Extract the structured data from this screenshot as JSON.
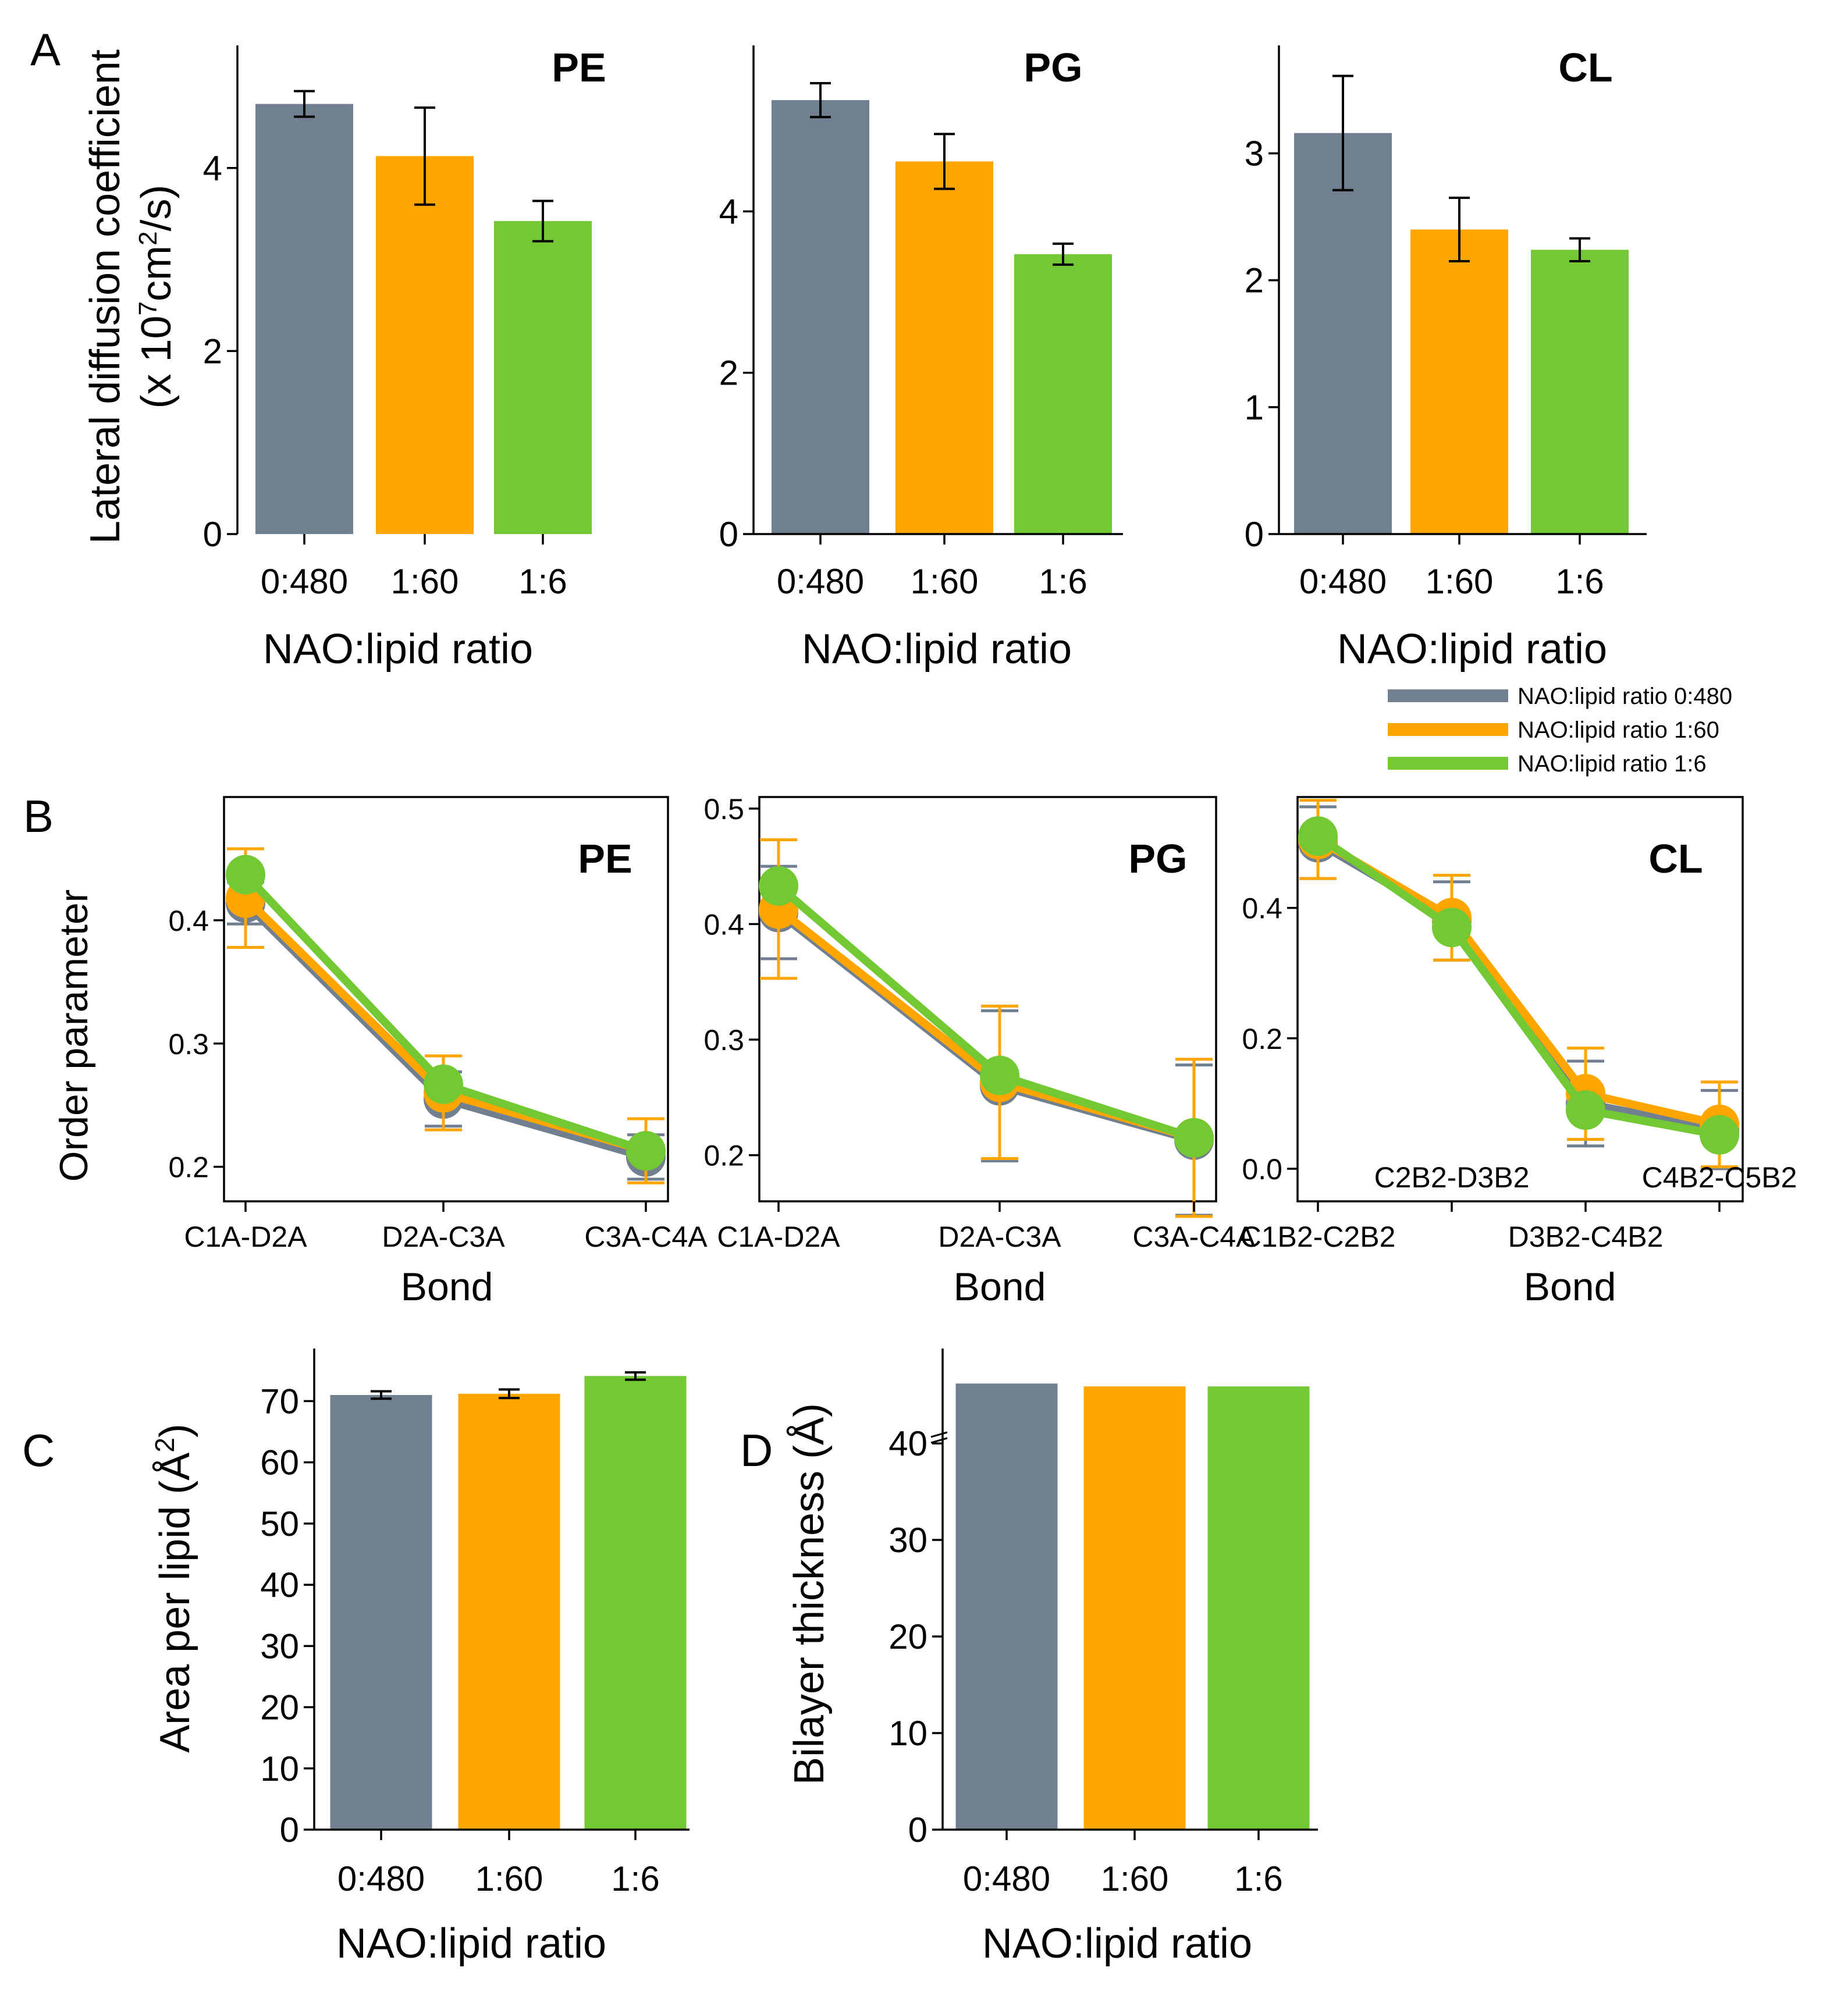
{
  "chart_data": [
    {
      "id": "A-PE",
      "panel_letter": "A",
      "type": "bar",
      "title": "PE",
      "categories": [
        "0:480",
        "1:60",
        "1:6"
      ],
      "values": [
        4.7,
        4.13,
        3.42
      ],
      "errors": [
        0.14,
        0.53,
        0.22
      ],
      "ylim": [
        0,
        5.2
      ],
      "yticks": [
        "0",
        "2",
        "4"
      ],
      "xlabel": "NAO:lipid ratio",
      "ylabel_line1": "Lateral diffusion coefficient",
      "ylabel_line2_prefix": "(x 10",
      "ylabel_sup1": "7",
      "ylabel_mid": "cm",
      "ylabel_sup2": "2",
      "ylabel_suffix": "/s)"
    },
    {
      "id": "A-PG",
      "type": "bar",
      "title": "PG",
      "categories": [
        "0:480",
        "1:60",
        "1:6"
      ],
      "values": [
        5.38,
        4.62,
        3.47
      ],
      "errors": [
        0.21,
        0.34,
        0.13
      ],
      "ylim": [
        0,
        5.9
      ],
      "yticks": [
        "0",
        "2",
        "4"
      ],
      "xlabel": "NAO:lipid ratio"
    },
    {
      "id": "A-CL",
      "type": "bar",
      "title": "CL",
      "categories": [
        "0:480",
        "1:60",
        "1:6"
      ],
      "values": [
        3.16,
        2.4,
        2.24
      ],
      "errors": [
        0.45,
        0.25,
        0.09
      ],
      "ylim": [
        0,
        3.75
      ],
      "yticks": [
        "0",
        "1",
        "2",
        "3"
      ],
      "xlabel": "NAO:lipid ratio"
    },
    {
      "id": "B-PE",
      "panel_letter": "B",
      "type": "line",
      "title": "PE",
      "categories": [
        "C1A-D2A",
        "D2A-C3A",
        "C3A-C4A"
      ],
      "series": [
        {
          "name": "NAO:lipid ratio 0:480",
          "values": [
            0.414,
            0.255,
            0.208
          ],
          "errors": [
            0.017,
            0.022,
            0.018
          ]
        },
        {
          "name": "NAO:lipid ratio 1:60",
          "values": [
            0.418,
            0.26,
            0.213
          ],
          "errors": [
            0.04,
            0.03,
            0.026
          ]
        },
        {
          "name": "NAO:lipid ratio 1:6",
          "values": [
            0.437,
            0.267,
            0.213
          ],
          "errors": [
            0,
            0,
            0
          ]
        }
      ],
      "ylim": [
        0.172,
        0.5
      ],
      "yticks": [
        "0.2",
        "0.3",
        "0.4"
      ],
      "xlabel": "Bond",
      "ylabel": "Order parameter"
    },
    {
      "id": "B-PG",
      "type": "line",
      "title": "PG",
      "categories": [
        "C1A-D2A",
        "D2A-C3A",
        "C3A-C4A"
      ],
      "series": [
        {
          "name": "NAO:lipid ratio 0:480",
          "values": [
            0.41,
            0.26,
            0.213
          ],
          "errors": [
            0.04,
            0.065,
            0.065
          ]
        },
        {
          "name": "NAO:lipid ratio 1:60",
          "values": [
            0.413,
            0.263,
            0.215
          ],
          "errors": [
            0.06,
            0.066,
            0.068
          ]
        },
        {
          "name": "NAO:lipid ratio 1:6",
          "values": [
            0.433,
            0.269,
            0.215
          ],
          "errors": [
            0,
            0,
            0
          ]
        }
      ],
      "ylim": [
        0.16,
        0.51
      ],
      "yticks": [
        "0.2",
        "0.3",
        "0.4",
        "0.5"
      ],
      "xlabel": "Bond"
    },
    {
      "id": "B-CL",
      "type": "line",
      "title": "CL",
      "categories_bottom": [
        "C1B2-C2B2",
        "D3B2-C4B2"
      ],
      "categories_top": [
        "C2B2-D3B2",
        "C4B2-C5B2"
      ],
      "series": [
        {
          "name": "NAO:lipid ratio 0:480",
          "values": [
            0.5,
            0.38,
            0.1,
            0.06
          ],
          "errors": [
            0.055,
            0.06,
            0.065,
            0.06
          ]
        },
        {
          "name": "NAO:lipid ratio 1:60",
          "values": [
            0.505,
            0.385,
            0.115,
            0.068
          ],
          "errors": [
            0.06,
            0.065,
            0.07,
            0.065
          ]
        },
        {
          "name": "NAO:lipid ratio 1:6",
          "values": [
            0.51,
            0.37,
            0.09,
            0.052
          ],
          "errors": [
            0,
            0,
            0,
            0
          ]
        }
      ],
      "ylim": [
        -0.05,
        0.57
      ],
      "yticks": [
        "0.0",
        "0.2",
        "0.4"
      ],
      "xlabel": "Bond"
    },
    {
      "id": "C",
      "panel_letter": "C",
      "type": "bar",
      "title": "",
      "categories": [
        "0:480",
        "1:60",
        "1:6"
      ],
      "values": [
        71,
        71.2,
        74.1
      ],
      "errors": [
        0.6,
        0.7,
        0.6
      ],
      "ylim": [
        0,
        76.5
      ],
      "yticks": [
        "0",
        "10",
        "20",
        "30",
        "40",
        "50",
        "60",
        "70"
      ],
      "xlabel": "NAO:lipid ratio",
      "ylabel_prefix": "Area per lipid (Å",
      "ylabel_sup": "2",
      "ylabel_suffix": ")"
    },
    {
      "id": "D",
      "panel_letter": "D",
      "type": "bar",
      "title": "",
      "categories": [
        "0:480",
        "1:60",
        "1:6"
      ],
      "values": [
        46.2,
        45.9,
        45.9
      ],
      "errors": [
        0,
        0,
        0
      ],
      "ylim": [
        0,
        48.5
      ],
      "yticks": [
        "0",
        "10",
        "20",
        "30",
        "40"
      ],
      "xlabel": "NAO:lipid ratio",
      "ylabel": "Bilayer thickness (Å)"
    }
  ],
  "legend": [
    {
      "label": "NAO:lipid ratio 0:480"
    },
    {
      "label": "NAO:lipid ratio 1:60"
    },
    {
      "label": "NAO:lipid ratio 1:6"
    }
  ],
  "colors": {
    "ratio_0_480": "#708090",
    "ratio_1_60": "#ffa500",
    "ratio_1_6": "#72c934",
    "error_bar": "#000000",
    "axis": "#000000"
  }
}
